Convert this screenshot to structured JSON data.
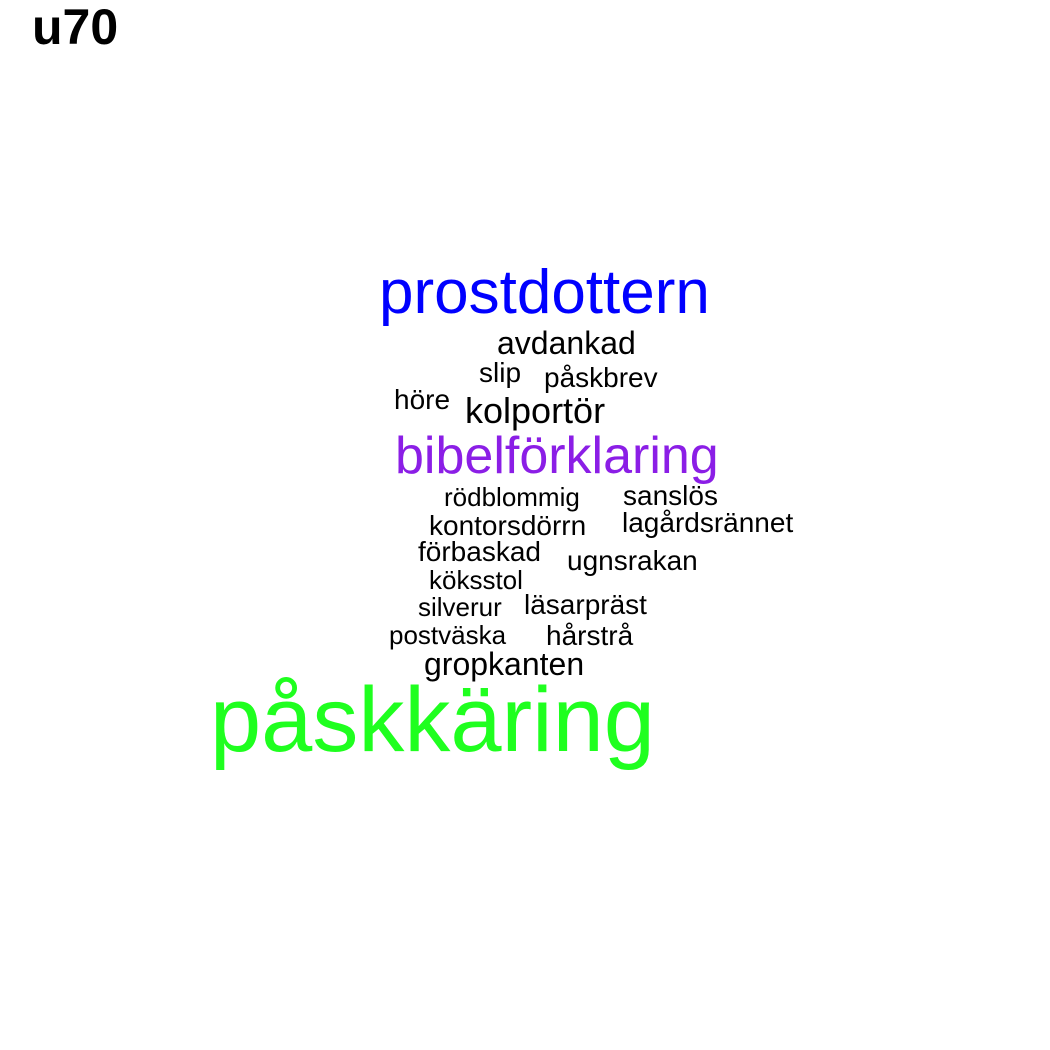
{
  "title": "u70",
  "colors": {
    "top": "#1fff1f",
    "second": "#0000ff",
    "third": "#8b1ee6",
    "rest": "#000000"
  },
  "words": {
    "paskkaring": "påskkäring",
    "prostdottern": "prostdottern",
    "bibelforklaring": "bibelförklaring",
    "kolportor": "kolportör",
    "avdankad": "avdankad",
    "slip": "slip",
    "paskbrev": "påskbrev",
    "hore": "höre",
    "rodblommig": "rödblommig",
    "sanslos": "sanslös",
    "kontorsdorrn": "kontorsdörrn",
    "lagardsrannet": "lagårdsrännet",
    "forbaskad": "förbaskad",
    "ugnsrakan": "ugnsrakan",
    "koksstol": "köksstol",
    "silverur": "silverur",
    "lasarprast": "läsarpräst",
    "postvaska": "postväska",
    "harstra": "hårstrå",
    "gropkanten": "gropkanten"
  }
}
